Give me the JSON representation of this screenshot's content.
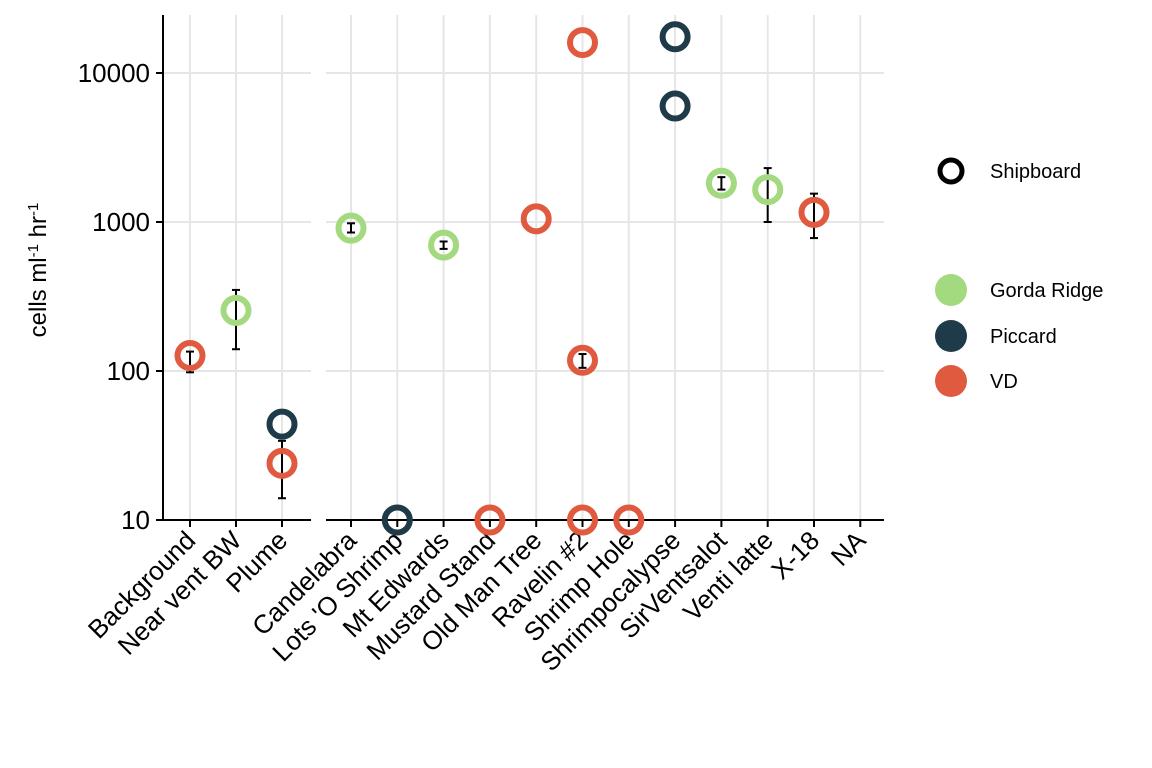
{
  "chart_data": {
    "type": "scatter",
    "ylabel": "cells ml",
    "ylabel_sup1": "-1",
    "ylabel_mid": " hr",
    "ylabel_sup2": "-1",
    "y_scale": "log10",
    "ylim": [
      10,
      25000
    ],
    "y_ticks": [
      10,
      100,
      1000,
      10000
    ],
    "y_tick_labels": [
      "10",
      "100",
      "1000",
      "10000"
    ],
    "grid": true,
    "legend_position": "right",
    "panels": [
      {
        "categories": [
          "Background",
          "Near vent BW",
          "Plume"
        ]
      },
      {
        "categories": [
          "Candelabra",
          "Lots 'O Shrimp",
          "Mt Edwards",
          "Mustard Stand",
          "Old Man Tree",
          "Ravelin #2",
          "Shrimp Hole",
          "Shrimpocalypse",
          "SirVentsalot",
          "Venti latte",
          "X-18",
          "NA"
        ]
      }
    ],
    "colors": {
      "Gorda Ridge": "#a3d97f",
      "Piccard": "#1f3a48",
      "VD": "#e05a3f"
    },
    "points": [
      {
        "panel": 0,
        "category": "Background",
        "group": "VD",
        "y": 127,
        "err": [
          98,
          135
        ]
      },
      {
        "panel": 0,
        "category": "Near vent BW",
        "group": "Gorda Ridge",
        "y": 255,
        "err": [
          140,
          350
        ]
      },
      {
        "panel": 0,
        "category": "Plume",
        "group": "Piccard",
        "y": 44
      },
      {
        "panel": 0,
        "category": "Plume",
        "group": "VD",
        "y": 24,
        "err": [
          14,
          34
        ]
      },
      {
        "panel": 1,
        "category": "Candelabra",
        "group": "Gorda Ridge",
        "y": 910,
        "err": [
          850,
          980
        ]
      },
      {
        "panel": 1,
        "category": "Lots 'O Shrimp",
        "group": "Piccard",
        "y": 10
      },
      {
        "panel": 1,
        "category": "Mt Edwards",
        "group": "Gorda Ridge",
        "y": 700,
        "err": [
          660,
          740
        ]
      },
      {
        "panel": 1,
        "category": "Mustard Stand",
        "group": "VD",
        "y": 10
      },
      {
        "panel": 1,
        "category": "Old Man Tree",
        "group": "VD",
        "y": 1050
      },
      {
        "panel": 1,
        "category": "Ravelin #2",
        "group": "VD",
        "y": 16000
      },
      {
        "panel": 1,
        "category": "Ravelin #2",
        "group": "VD",
        "y": 118,
        "err": [
          105,
          130
        ]
      },
      {
        "panel": 1,
        "category": "Ravelin #2",
        "group": "VD",
        "y": 10
      },
      {
        "panel": 1,
        "category": "Shrimp Hole",
        "group": "VD",
        "y": 10
      },
      {
        "panel": 1,
        "category": "Shrimpocalypse",
        "group": "Piccard",
        "y": 17500
      },
      {
        "panel": 1,
        "category": "Shrimpocalypse",
        "group": "Piccard",
        "y": 6000
      },
      {
        "panel": 1,
        "category": "SirVentsalot",
        "group": "Gorda Ridge",
        "y": 1820,
        "err": [
          1650,
          2000
        ]
      },
      {
        "panel": 1,
        "category": "Venti latte",
        "group": "Gorda Ridge",
        "y": 1650,
        "err": [
          1000,
          2300
        ]
      },
      {
        "panel": 1,
        "category": "X-18",
        "group": "VD",
        "y": 1160,
        "err": [
          780,
          1550
        ]
      }
    ],
    "legend": {
      "shape_entries": [
        {
          "label": "Shipboard"
        }
      ],
      "color_entries": [
        {
          "label": "Gorda Ridge",
          "color": "#a3d97f"
        },
        {
          "label": "Piccard",
          "color": "#1f3a48"
        },
        {
          "label": "VD",
          "color": "#e05a3f"
        }
      ]
    }
  }
}
